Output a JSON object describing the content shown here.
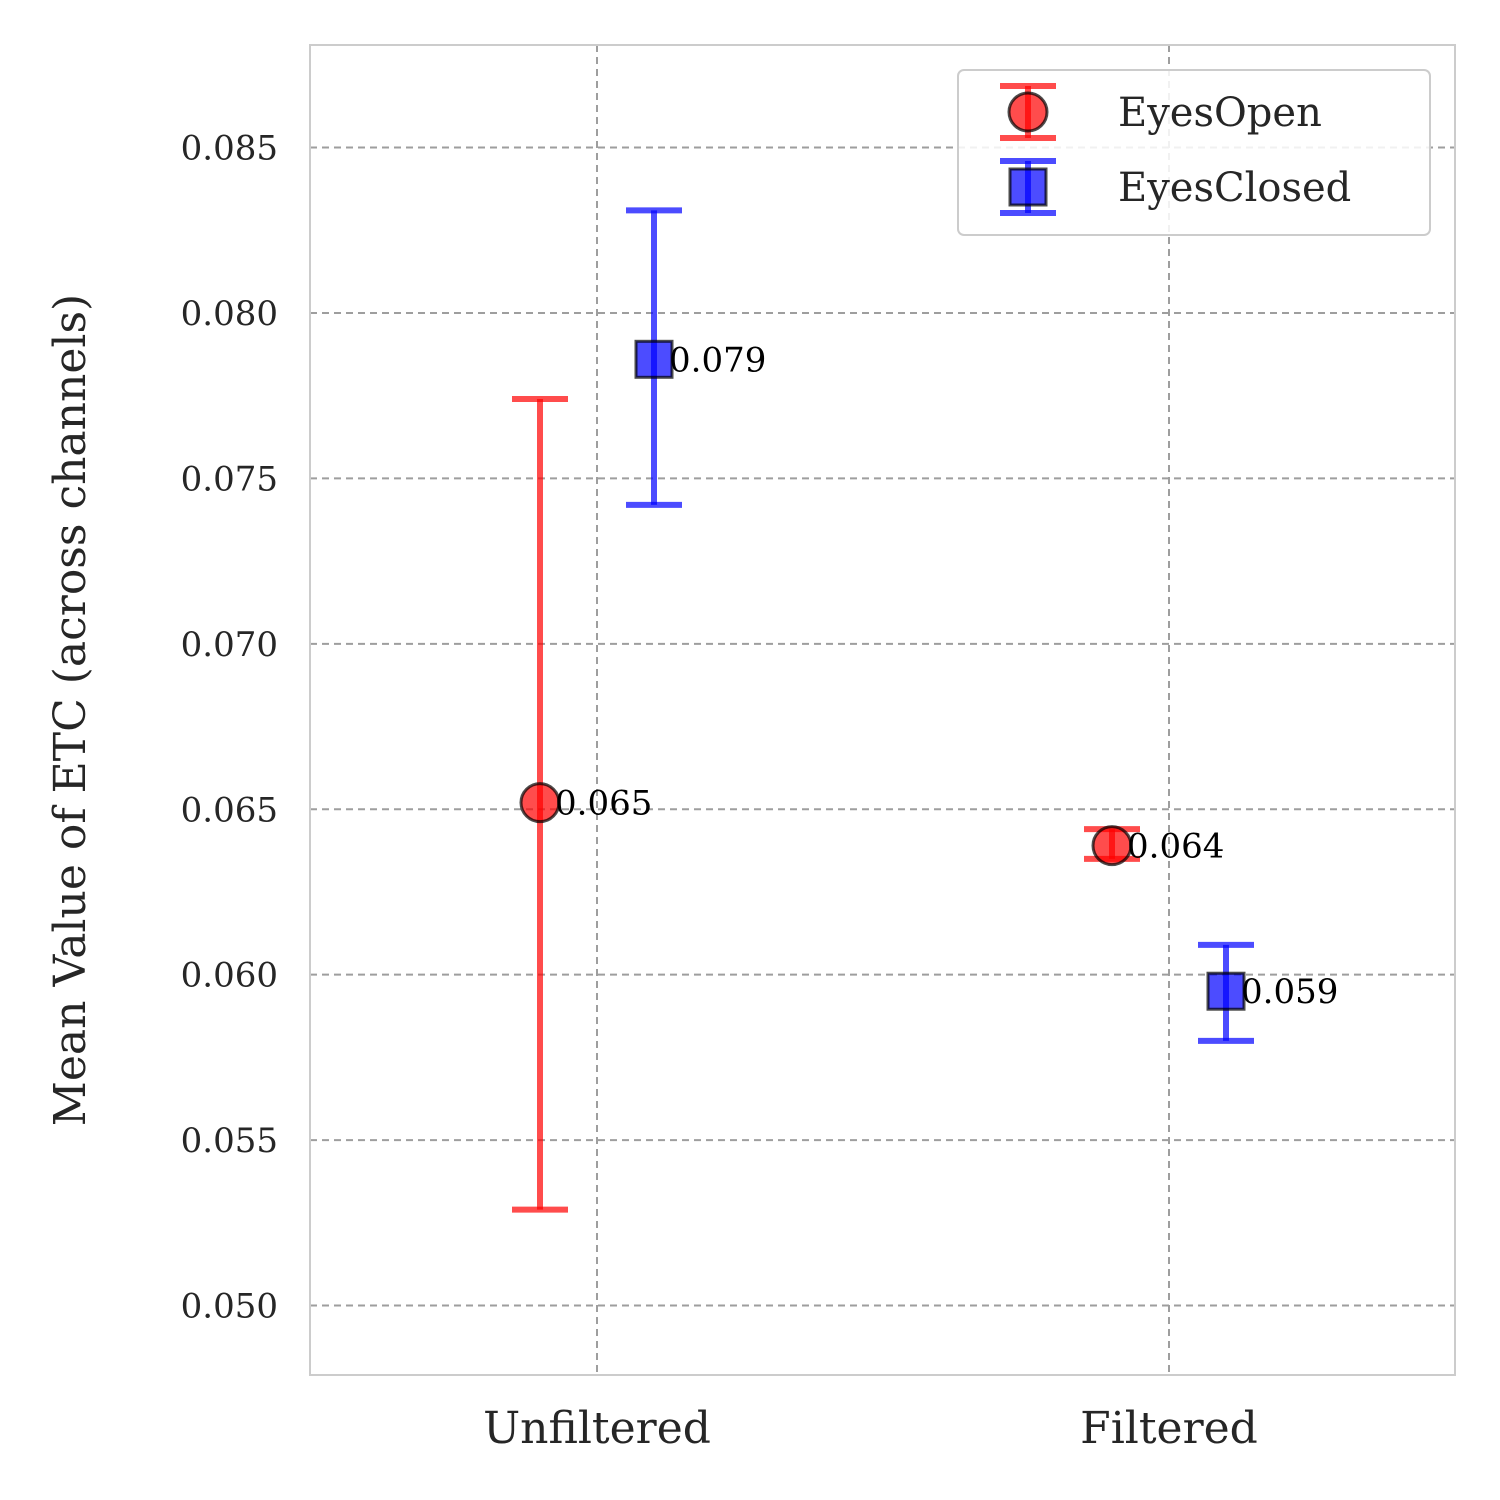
{
  "chart_data": {
    "type": "scatter",
    "ylabel": "Mean Value of ETC (across channels)",
    "categories": [
      "Unfiltered",
      "Filtered"
    ],
    "ylim": [
      0.0479,
      0.0881
    ],
    "y_ticks": [
      "0.050",
      "0.055",
      "0.060",
      "0.065",
      "0.070",
      "0.075",
      "0.080",
      "0.085"
    ],
    "grid": true,
    "legend_position": "top-right",
    "series": [
      {
        "name": "EyesOpen",
        "marker": "circle",
        "color": "#ff0000",
        "points": [
          {
            "category": "Unfiltered",
            "mean": 0.0652,
            "lower": 0.0529,
            "upper": 0.0774,
            "label": "0.065"
          },
          {
            "category": "Filtered",
            "mean": 0.0639,
            "lower": 0.0635,
            "upper": 0.0644,
            "label": "0.064"
          }
        ]
      },
      {
        "name": "EyesClosed",
        "marker": "square",
        "color": "#0000ff",
        "points": [
          {
            "category": "Unfiltered",
            "mean": 0.0786,
            "lower": 0.0742,
            "upper": 0.0831,
            "label": "0.079"
          },
          {
            "category": "Filtered",
            "mean": 0.0595,
            "lower": 0.058,
            "upper": 0.0609,
            "label": "0.059"
          }
        ]
      }
    ]
  }
}
